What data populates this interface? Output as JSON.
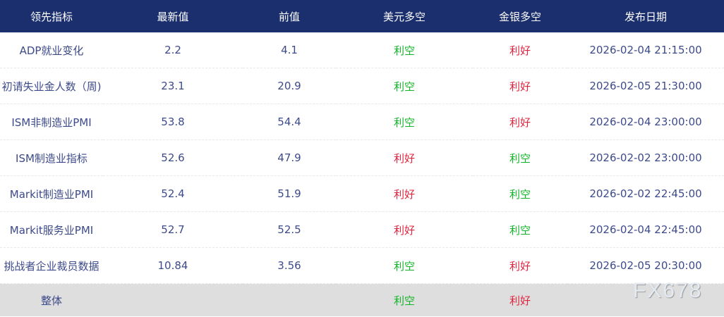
{
  "headers": [
    "领先指标",
    "最新值",
    "前值",
    "美元多空",
    "金银多空",
    "发布日期"
  ],
  "rows": [
    {
      "name": "ADP就业变化",
      "latest": "2.2",
      "previous": "4.1",
      "usd": "利空",
      "metals": "利好",
      "date": "2026-02-04 21:15:00"
    },
    {
      "name": "初请失业金人数（周)",
      "latest": "23.1",
      "previous": "20.9",
      "usd": "利空",
      "metals": "利好",
      "date": "2026-02-05 21:30:00"
    },
    {
      "name": "ISM非制造业PMI",
      "latest": "53.8",
      "previous": "54.4",
      "usd": "利空",
      "metals": "利好",
      "date": "2026-02-04 23:00:00"
    },
    {
      "name": "ISM制造业指标",
      "latest": "52.6",
      "previous": "47.9",
      "usd": "利好",
      "metals": "利空",
      "date": "2026-02-02 23:00:00"
    },
    {
      "name": "Markit制造业PMI",
      "latest": "52.4",
      "previous": "51.9",
      "usd": "利好",
      "metals": "利空",
      "date": "2026-02-02 22:45:00"
    },
    {
      "name": "Markit服务业PMI",
      "latest": "52.7",
      "previous": "52.5",
      "usd": "利好",
      "metals": "利空",
      "date": "2026-02-04 22:45:00"
    },
    {
      "name": "挑战者企业裁员数据",
      "latest": "10.84",
      "previous": "3.56",
      "usd": "利空",
      "metals": "利好",
      "date": "2026-02-05 20:30:00"
    }
  ],
  "total": {
    "name": "整体",
    "usd": "利空",
    "metals": "利好"
  },
  "colors": {
    "header_bg": "#1b2f6e",
    "bullish": "#e0243e",
    "bearish": "#12b528"
  },
  "watermark": "FX678"
}
